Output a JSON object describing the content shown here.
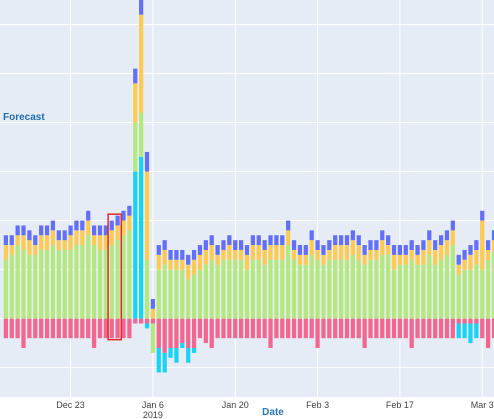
{
  "colors": {
    "plot_bg": "#e5ecf6",
    "grid": "#ffffff",
    "pink": "#f2668f",
    "green": "#b6e880",
    "orange": "#fecb52",
    "purple": "#636efa",
    "cyan": "#19d3f3",
    "highlight": "#e32a2a"
  },
  "chart_data": {
    "type": "bar",
    "stacked": true,
    "side_label": "Forecast",
    "xlabel": "Date",
    "x_ticks": [
      {
        "date": "2018-12-23",
        "label": "Dec 23",
        "sublabel": ""
      },
      {
        "date": "2019-01-06",
        "label": "Jan 6",
        "sublabel": "2019"
      },
      {
        "date": "2019-01-20",
        "label": "Jan 20",
        "sublabel": ""
      },
      {
        "date": "2019-02-03",
        "label": "Feb 3",
        "sublabel": ""
      },
      {
        "date": "2019-02-17",
        "label": "Feb 17",
        "sublabel": ""
      },
      {
        "date": "2019-03-03",
        "label": "Mar 3",
        "sublabel": ""
      }
    ],
    "x_range": [
      "2018-12-11",
      "2019-03-05"
    ],
    "y_range": [
      -16,
      65
    ],
    "grid": true,
    "highlight_range": [
      "2018-12-30",
      "2018-12-31"
    ],
    "series": [
      {
        "key": "pink",
        "values": [
          -4,
          -4,
          -4,
          -6,
          -4,
          -4,
          -4,
          -4,
          -4,
          -4,
          -4,
          -4,
          -4,
          -4,
          -4,
          -6,
          -4,
          -4,
          -4,
          -4,
          -4,
          -4,
          -1,
          -1,
          -1,
          -1,
          -6,
          -7,
          -6,
          -6,
          -5,
          -6,
          -6,
          -4,
          -5,
          -6,
          -4,
          -4,
          -4,
          -4,
          -4,
          -4,
          -4,
          -4,
          -4,
          -6,
          -4,
          -4,
          -4,
          -4,
          -4,
          -4,
          -4,
          -6,
          -4,
          -4,
          -4,
          -4,
          -4,
          -4,
          -4,
          -6,
          -4,
          -4,
          -4,
          -4,
          -4,
          -4,
          -4,
          -6,
          -4,
          -4,
          -4,
          -4,
          -4,
          -4,
          -4,
          -1,
          -1,
          -1,
          -1,
          -4,
          -6,
          -4,
          -4,
          -4,
          -4,
          -4,
          -4,
          -4,
          -2
        ]
      },
      {
        "key": "cyan",
        "values": [
          0,
          0,
          0,
          0,
          0,
          0,
          0,
          0,
          0,
          0,
          0,
          0,
          0,
          0,
          0,
          0,
          0,
          0,
          0,
          0,
          0,
          0,
          30,
          33,
          -1,
          0,
          -5,
          -4,
          -2,
          -3,
          -1,
          -3,
          -1,
          0,
          0,
          0,
          0,
          0,
          0,
          0,
          0,
          0,
          0,
          0,
          0,
          0,
          0,
          0,
          0,
          0,
          0,
          0,
          0,
          0,
          0,
          0,
          0,
          0,
          0,
          0,
          0,
          0,
          0,
          0,
          0,
          0,
          0,
          0,
          0,
          0,
          0,
          0,
          0,
          0,
          0,
          0,
          0,
          -3,
          -3,
          -4,
          -3,
          0,
          0,
          0,
          0,
          0,
          0,
          0,
          0,
          0,
          -2
        ]
      },
      {
        "key": "green",
        "values": [
          12,
          13,
          15,
          14,
          13,
          13,
          14,
          14,
          15,
          14,
          14,
          14,
          15,
          15,
          17,
          15,
          14,
          14,
          15,
          16,
          17,
          18,
          10,
          9,
          12,
          -6,
          10,
          11,
          10,
          10,
          10,
          8,
          9,
          10,
          11,
          12,
          11,
          12,
          12,
          12,
          12,
          10,
          12,
          12,
          11,
          12,
          12,
          12,
          15,
          12,
          11,
          11,
          13,
          12,
          11,
          12,
          12,
          12,
          12,
          13,
          12,
          11,
          12,
          12,
          13,
          13,
          10,
          11,
          11,
          12,
          11,
          11,
          13,
          11,
          12,
          13,
          15,
          9,
          10,
          10,
          11,
          10,
          12,
          14,
          12,
          12,
          13,
          12,
          10,
          14,
          14
        ]
      },
      {
        "key": "orange",
        "values": [
          3,
          2,
          2,
          3,
          3,
          2,
          3,
          3,
          3,
          2,
          2,
          3,
          3,
          3,
          3,
          2,
          3,
          3,
          3,
          3,
          3,
          3,
          8,
          20,
          18,
          2,
          3,
          3,
          2,
          2,
          2,
          3,
          3,
          3,
          3,
          3,
          2,
          2,
          3,
          2,
          2,
          3,
          3,
          3,
          3,
          3,
          3,
          3,
          3,
          2,
          2,
          2,
          3,
          2,
          2,
          2,
          3,
          3,
          3,
          3,
          3,
          2,
          2,
          2,
          3,
          2,
          3,
          2,
          2,
          2,
          2,
          3,
          3,
          3,
          3,
          3,
          3,
          2,
          2,
          3,
          3,
          10,
          2,
          2,
          3,
          3,
          2,
          2,
          3,
          3,
          2
        ]
      },
      {
        "key": "purple",
        "values": [
          2,
          2,
          2,
          2,
          2,
          2,
          2,
          2,
          2,
          2,
          2,
          2,
          2,
          2,
          2,
          2,
          2,
          2,
          2,
          2,
          2,
          2,
          3,
          4,
          4,
          2,
          2,
          2,
          2,
          2,
          2,
          2,
          2,
          2,
          2,
          2,
          2,
          2,
          2,
          2,
          2,
          2,
          2,
          2,
          2,
          2,
          2,
          2,
          2,
          2,
          2,
          2,
          2,
          2,
          2,
          2,
          2,
          2,
          2,
          2,
          2,
          2,
          2,
          2,
          2,
          2,
          2,
          2,
          2,
          2,
          2,
          2,
          2,
          2,
          2,
          2,
          2,
          2,
          2,
          2,
          2,
          2,
          2,
          2,
          2,
          2,
          2,
          2,
          2,
          2,
          2
        ]
      }
    ]
  }
}
